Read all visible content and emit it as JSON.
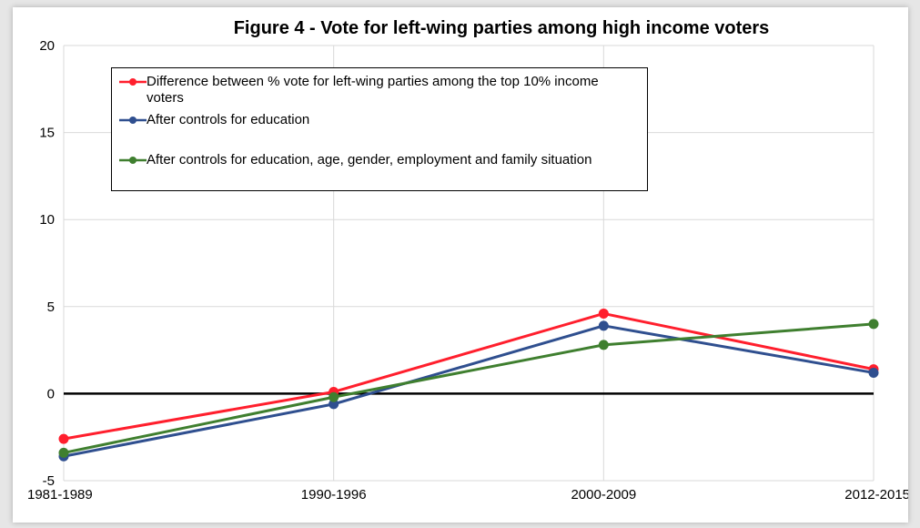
{
  "chart_data": {
    "type": "line",
    "title": "Figure 4 -  Vote for left-wing parties among high income voters",
    "categories": [
      "1981-1989",
      "1990-1996",
      "2000-2009",
      "2012-2015"
    ],
    "ylim": [
      -5,
      20
    ],
    "yticks": [
      "20",
      "15",
      "10",
      "5",
      "0",
      "-5"
    ],
    "grid": true,
    "legend_position": "top-left",
    "series": [
      {
        "name": "Difference between % vote for left-wing parties among the top 10% income voters",
        "color": "#ff1f2d",
        "values": [
          -2.6,
          0.1,
          4.6,
          1.4
        ]
      },
      {
        "name": "After controls for education",
        "color": "#2f4f8f",
        "values": [
          -3.6,
          -0.6,
          3.9,
          1.2
        ]
      },
      {
        "name": "After controls for education, age, gender, employment and family situation",
        "color": "#3f7f2f",
        "values": [
          -3.4,
          -0.2,
          2.8,
          4.0
        ]
      }
    ]
  }
}
